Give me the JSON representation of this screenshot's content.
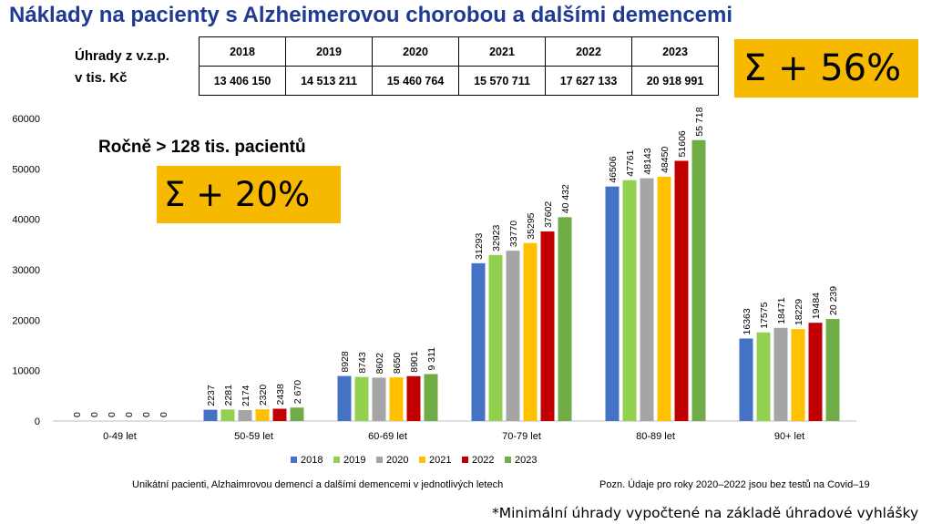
{
  "title": "Náklady na pacienty s Alzheimerovou chorobou a dalšími demencemi",
  "payments": {
    "label_line1": "Úhrady z v.z.p.",
    "label_line2": "v tis. Kč",
    "years": [
      "2018",
      "2019",
      "2020",
      "2021",
      "2022",
      "2023"
    ],
    "values": [
      "13 406 150",
      "14 513 211",
      "15 460 764",
      "15 570 711",
      "17 627 133",
      "20 918 991"
    ]
  },
  "box_top": "Σ + 56%",
  "box_mid": "Σ + 20%",
  "patients_note": "Ročně > 128 tis. pacientů",
  "caption_left": "Unikátní pacienti, Alzhaimrovou demencí a dalšími demencemi v jednotlivých letech",
  "caption_right": "Pozn. Údaje pro roky 2020–2022 jsou bez testů na Covid–19",
  "footnote": "*Minimální úhrady vypočtené na základě úhradové vyhlášky",
  "chart_data": {
    "type": "bar",
    "categories": [
      "0-49 let",
      "50-59 let",
      "60-69 let",
      "70-79 let",
      "80-89 let",
      "90+ let"
    ],
    "series": [
      {
        "name": "2018",
        "color": "#4472c4",
        "values": [
          0,
          2237,
          8928,
          31293,
          46506,
          16363
        ],
        "labels": [
          "0",
          "2237",
          "8928",
          "31293",
          "46506",
          "16363"
        ]
      },
      {
        "name": "2019",
        "color": "#92d050",
        "values": [
          0,
          2281,
          8743,
          32923,
          47761,
          17575
        ],
        "labels": [
          "0",
          "2281",
          "8743",
          "32923",
          "47761",
          "17575"
        ]
      },
      {
        "name": "2020",
        "color": "#a5a5a5",
        "values": [
          0,
          2174,
          8602,
          33770,
          48143,
          18471
        ],
        "labels": [
          "0",
          "2174",
          "8602",
          "33770",
          "48143",
          "18471"
        ]
      },
      {
        "name": "2021",
        "color": "#ffc000",
        "values": [
          0,
          2320,
          8650,
          35295,
          48450,
          18229
        ],
        "labels": [
          "0",
          "2320",
          "8650",
          "35295",
          "48450",
          "18229"
        ]
      },
      {
        "name": "2022",
        "color": "#c00000",
        "values": [
          0,
          2438,
          8901,
          37602,
          51606,
          19484
        ],
        "labels": [
          "0",
          "2438",
          "8901",
          "37602",
          "51606",
          "19484"
        ]
      },
      {
        "name": "2023",
        "color": "#70ad47",
        "values": [
          0,
          2670,
          9311,
          40432,
          55718,
          20239
        ],
        "labels": [
          "0",
          "2 670",
          "9 311",
          "40 432",
          "55 718",
          "20 239"
        ]
      }
    ],
    "ylim": [
      0,
      60000
    ],
    "yticks": [
      "0",
      "10000",
      "20000",
      "30000",
      "40000",
      "50000",
      "60000"
    ],
    "legend_position": "bottom",
    "grid": false
  }
}
